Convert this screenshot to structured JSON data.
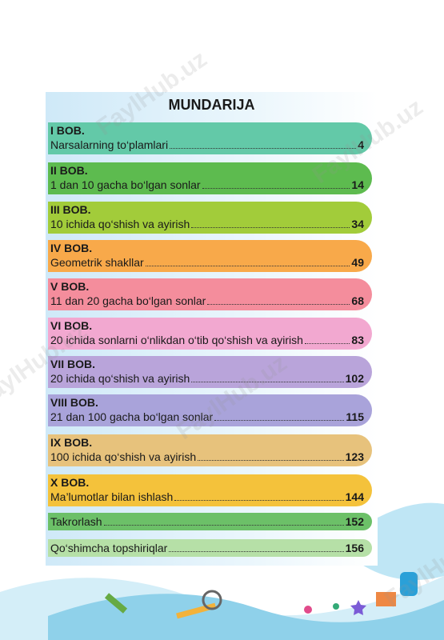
{
  "toc": {
    "title": "MUNDARIJA",
    "watermark": "FaylHub.uz",
    "entries": [
      {
        "chapter": "I BOB.",
        "title": "Narsalarning to‘plamlari",
        "page": 4
      },
      {
        "chapter": "II BOB.",
        "title": "1 dan 10 gacha bo‘lgan sonlar",
        "page": 14
      },
      {
        "chapter": "III BOB.",
        "title": "10 ichida qo‘shish va ayirish",
        "page": 34
      },
      {
        "chapter": "IV BOB.",
        "title": "Geometrik shakllar",
        "page": 49
      },
      {
        "chapter": "V BOB.",
        "title": "11 dan 20 gacha bo‘lgan sonlar",
        "page": 68
      },
      {
        "chapter": "VI BOB.",
        "title": "20 ichida sonlarni o‘nlikdan o‘tib qo‘shish va ayirish",
        "page": 83
      },
      {
        "chapter": "VII BOB.",
        "title": "20 ichida qo‘shish va ayirish",
        "page": 102
      },
      {
        "chapter": "VIII BOB.",
        "title": "21 dan 100 gacha bo‘lgan sonlar",
        "page": 115
      },
      {
        "chapter": "IX BOB.",
        "title": "100 ichida qo‘shish va ayirish",
        "page": 123
      },
      {
        "chapter": "X BOB.",
        "title": "Ma’lumotlar bilan ishlash",
        "page": 144
      },
      {
        "title": "Takrorlash",
        "page": 152
      },
      {
        "title": "Qo‘shimcha topshiriqlar",
        "page": 156
      }
    ]
  }
}
